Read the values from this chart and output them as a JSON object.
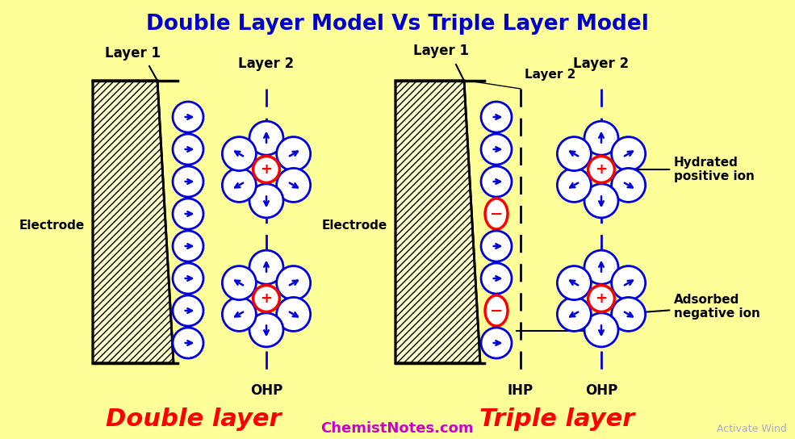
{
  "title": "Double Layer Model Vs Triple Layer Model",
  "title_color": "#0000CC",
  "title_fontsize": 19,
  "bg_color": "#FFFF99",
  "double_label": "Double layer",
  "triple_label": "Triple layer",
  "label_color": "#FF0000",
  "label_fontsize": 22,
  "website": "ChemistNotes.com",
  "website_color": "#CC00CC",
  "website_fontsize": 13,
  "activate_wind": "Activate Wind",
  "ion_outline_color": "#0000DD",
  "ion_fill_color": "#FFFFFF",
  "positive_ion_color": "#FF0000",
  "negative_ion_color": "#FF0000",
  "arrow_color": "#0000DD",
  "dashed_blue": "#0000DD",
  "dashed_black": "#000000"
}
